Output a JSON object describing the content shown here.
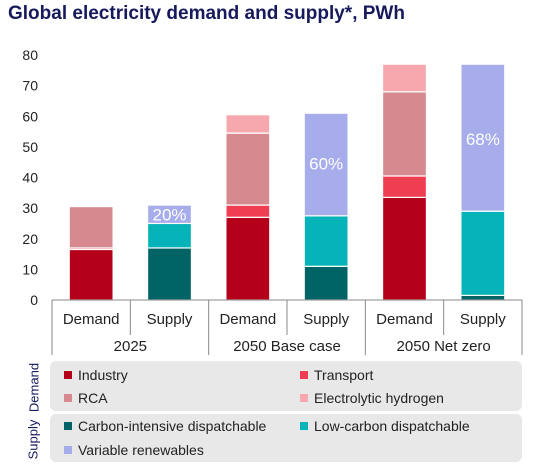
{
  "title": "Global electricity demand and supply*, PWh",
  "legend": {
    "demand_label": "Demand",
    "supply_label": "Supply",
    "demand_items": [
      {
        "label": "Industry",
        "color": "#b5001a"
      },
      {
        "label": "Transport",
        "color": "#ef3e52"
      },
      {
        "label": "RCA",
        "color": "#d68a8f"
      },
      {
        "label": "Electrolytic hydrogen",
        "color": "#f7a8ae"
      }
    ],
    "supply_items": [
      {
        "label": "Carbon-intensive dispatchable",
        "color": "#006466"
      },
      {
        "label": "Low-carbon dispatchable",
        "color": "#05b3b8"
      },
      {
        "label": "Variable renewables",
        "color": "#a7acea"
      }
    ]
  },
  "chart_data": {
    "type": "bar",
    "stacked": true,
    "ylim": [
      0,
      80
    ],
    "yticks": [
      0,
      10,
      20,
      30,
      40,
      50,
      60,
      70,
      80
    ],
    "groups": [
      "2025",
      "2050 Base case",
      "2050 Net zero"
    ],
    "categories": [
      "Demand",
      "Supply",
      "Demand",
      "Supply",
      "Demand",
      "Supply"
    ],
    "series": [
      {
        "name": "Industry",
        "color": "#b5001a",
        "values": [
          16.5,
          0,
          27,
          0,
          33.5,
          0
        ]
      },
      {
        "name": "Transport",
        "color": "#ef3e52",
        "values": [
          0.5,
          0,
          4,
          0,
          7,
          0
        ]
      },
      {
        "name": "RCA",
        "color": "#d68a8f",
        "values": [
          13.5,
          0,
          23.5,
          0,
          27.5,
          0
        ]
      },
      {
        "name": "Electrolytic hydrogen",
        "color": "#f7a8ae",
        "values": [
          0,
          0,
          6,
          0,
          9,
          0
        ]
      },
      {
        "name": "Carbon-intensive dispatchable",
        "color": "#006466",
        "values": [
          0,
          17,
          0,
          11,
          0,
          1.5
        ]
      },
      {
        "name": "Low-carbon dispatchable",
        "color": "#05b3b8",
        "values": [
          0,
          8,
          0,
          16.5,
          0,
          27.5
        ]
      },
      {
        "name": "Variable renewables",
        "color": "#a7acea",
        "values": [
          0,
          6,
          0,
          33.5,
          0,
          48
        ]
      }
    ],
    "data_labels": [
      {
        "bar": 1,
        "text": "20%",
        "y": 28
      },
      {
        "bar": 3,
        "text": "60%",
        "y": 44.5
      },
      {
        "bar": 5,
        "text": "68%",
        "y": 52.5
      }
    ]
  }
}
